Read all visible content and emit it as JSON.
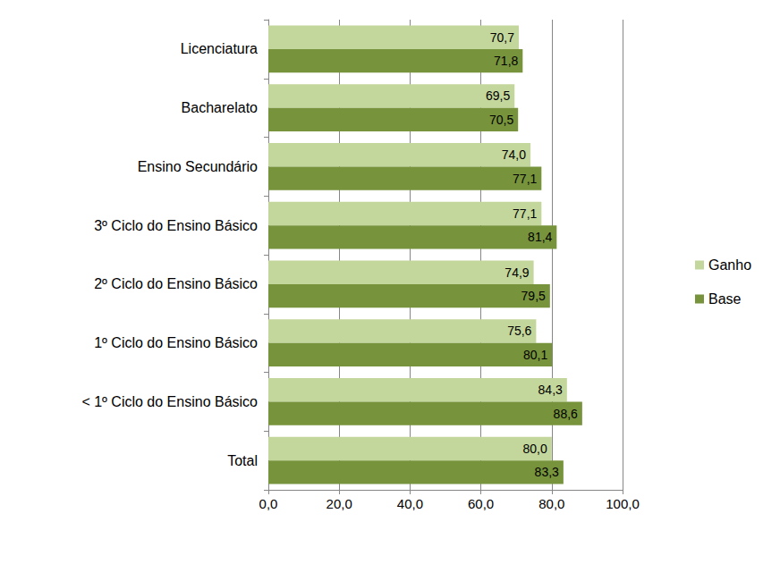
{
  "chart_data": {
    "type": "bar",
    "orientation": "horizontal",
    "categories": [
      "Licenciatura",
      "Bacharelato",
      "Ensino Secundário",
      "3º Ciclo do Ensino Básico",
      "2º Ciclo do Ensino Básico",
      "1º Ciclo do Ensino Básico",
      "< 1º Ciclo do Ensino Básico",
      "Total"
    ],
    "series": [
      {
        "name": "Ganho",
        "color": "#c3d69b",
        "values": [
          70.7,
          69.5,
          74.0,
          77.1,
          74.9,
          75.6,
          84.3,
          80.0
        ],
        "value_labels": [
          "70,7",
          "69,5",
          "74,0",
          "77,1",
          "74,9",
          "75,6",
          "84,3",
          "80,0"
        ]
      },
      {
        "name": "Base",
        "color": "#77933c",
        "values": [
          71.8,
          70.5,
          77.1,
          81.4,
          79.5,
          80.1,
          88.6,
          83.3
        ],
        "value_labels": [
          "71,8",
          "70,5",
          "77,1",
          "81,4",
          "79,5",
          "80,1",
          "88,6",
          "83,3"
        ]
      }
    ],
    "xlim": [
      0,
      100
    ],
    "xticks": [
      {
        "value": 0,
        "label": "0,0"
      },
      {
        "value": 20,
        "label": "20,0"
      },
      {
        "value": 40,
        "label": "40,0"
      },
      {
        "value": 60,
        "label": "60,0"
      },
      {
        "value": 80,
        "label": "80,0"
      },
      {
        "value": 100,
        "label": "100,0"
      }
    ],
    "grid": true,
    "legend": "right",
    "data_labels": true
  }
}
